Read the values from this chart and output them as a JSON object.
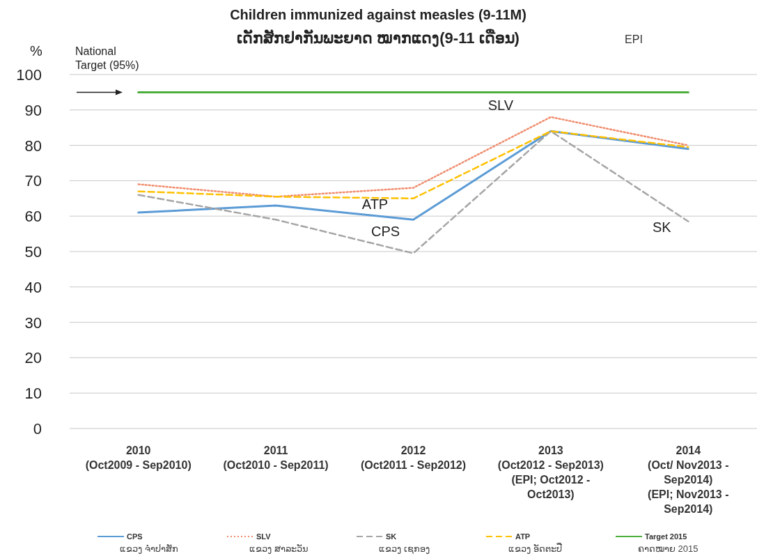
{
  "chart_data": {
    "type": "line",
    "title": "Children immunized against measles (9-11M)",
    "subtitle": "ເດັກສັກຢາກັນພະຍາດ ໝາກແດງ(9-11 ເດືອນ)",
    "ylabel": "%",
    "categories": [
      "2010\n(Oct2009 - Sep2010)",
      "2011\n(Oct2010 - Sep2011)",
      "2012\n(Oct2011 - Sep2012)",
      "2013\n(Oct2012 - Sep2013)\n(EPI; Oct2012 -\nOct2013)",
      "2014\n(Oct/ Nov2013 -\nSep2014)\n(EPI; Nov2013 -\nSep2014)"
    ],
    "series": [
      {
        "name": "CPS\nແຂວງ ຈຳປາສັກ",
        "color": "#5b9bd5",
        "line_style": "solid",
        "values": [
          61,
          63,
          59,
          84,
          79
        ]
      },
      {
        "name": "SLV\nແຂວງ ສາລະວັນ",
        "color": "#f08c6c",
        "line_style": "dotted",
        "values": [
          69,
          65.5,
          68,
          88,
          80
        ]
      },
      {
        "name": "SK\nແຂວງ ເຊກອງ",
        "color": "#a5a5a5",
        "line_style": "dashed",
        "values": [
          66,
          59,
          49.5,
          84,
          58.5
        ]
      },
      {
        "name": "ATP\nແຂວງ ອັດຕະປື",
        "color": "#ffc000",
        "line_style": "dashed",
        "values": [
          67,
          65.5,
          65,
          84,
          79.5
        ]
      },
      {
        "name": "Target 2015\nຄາດໝາຍ 2015",
        "color": "#4caf3c",
        "line_style": "solid",
        "values": [
          95,
          95,
          95,
          95,
          95
        ]
      }
    ],
    "ylim": [
      0,
      100
    ],
    "yticks": [
      0,
      10,
      20,
      30,
      40,
      50,
      60,
      70,
      80,
      90,
      100
    ],
    "grid": "y",
    "legend": "bottom",
    "marker": "none",
    "annotations": [
      {
        "text": "National\nTarget (95%)",
        "x": "2010\n(Oct2009 - Sep2010)",
        "y": 95
      },
      {
        "text": "SLV",
        "x": "2013\n(Oct2012 - Sep2013)\n(EPI; Oct2012 -\nOct2013)",
        "y": 88
      },
      {
        "text": "ATP",
        "x": "2012\n(Oct2011 - Sep2012)",
        "y": 65
      },
      {
        "text": "CPS",
        "x": "2012\n(Oct2011 - Sep2012)",
        "y": 59
      },
      {
        "text": "SK",
        "x": "2014\n(Oct/ Nov2013 -\nSep2014)\n(EPI; Nov2013 -\nSep2014)",
        "y": 58.5
      },
      "EPI"
    ]
  }
}
